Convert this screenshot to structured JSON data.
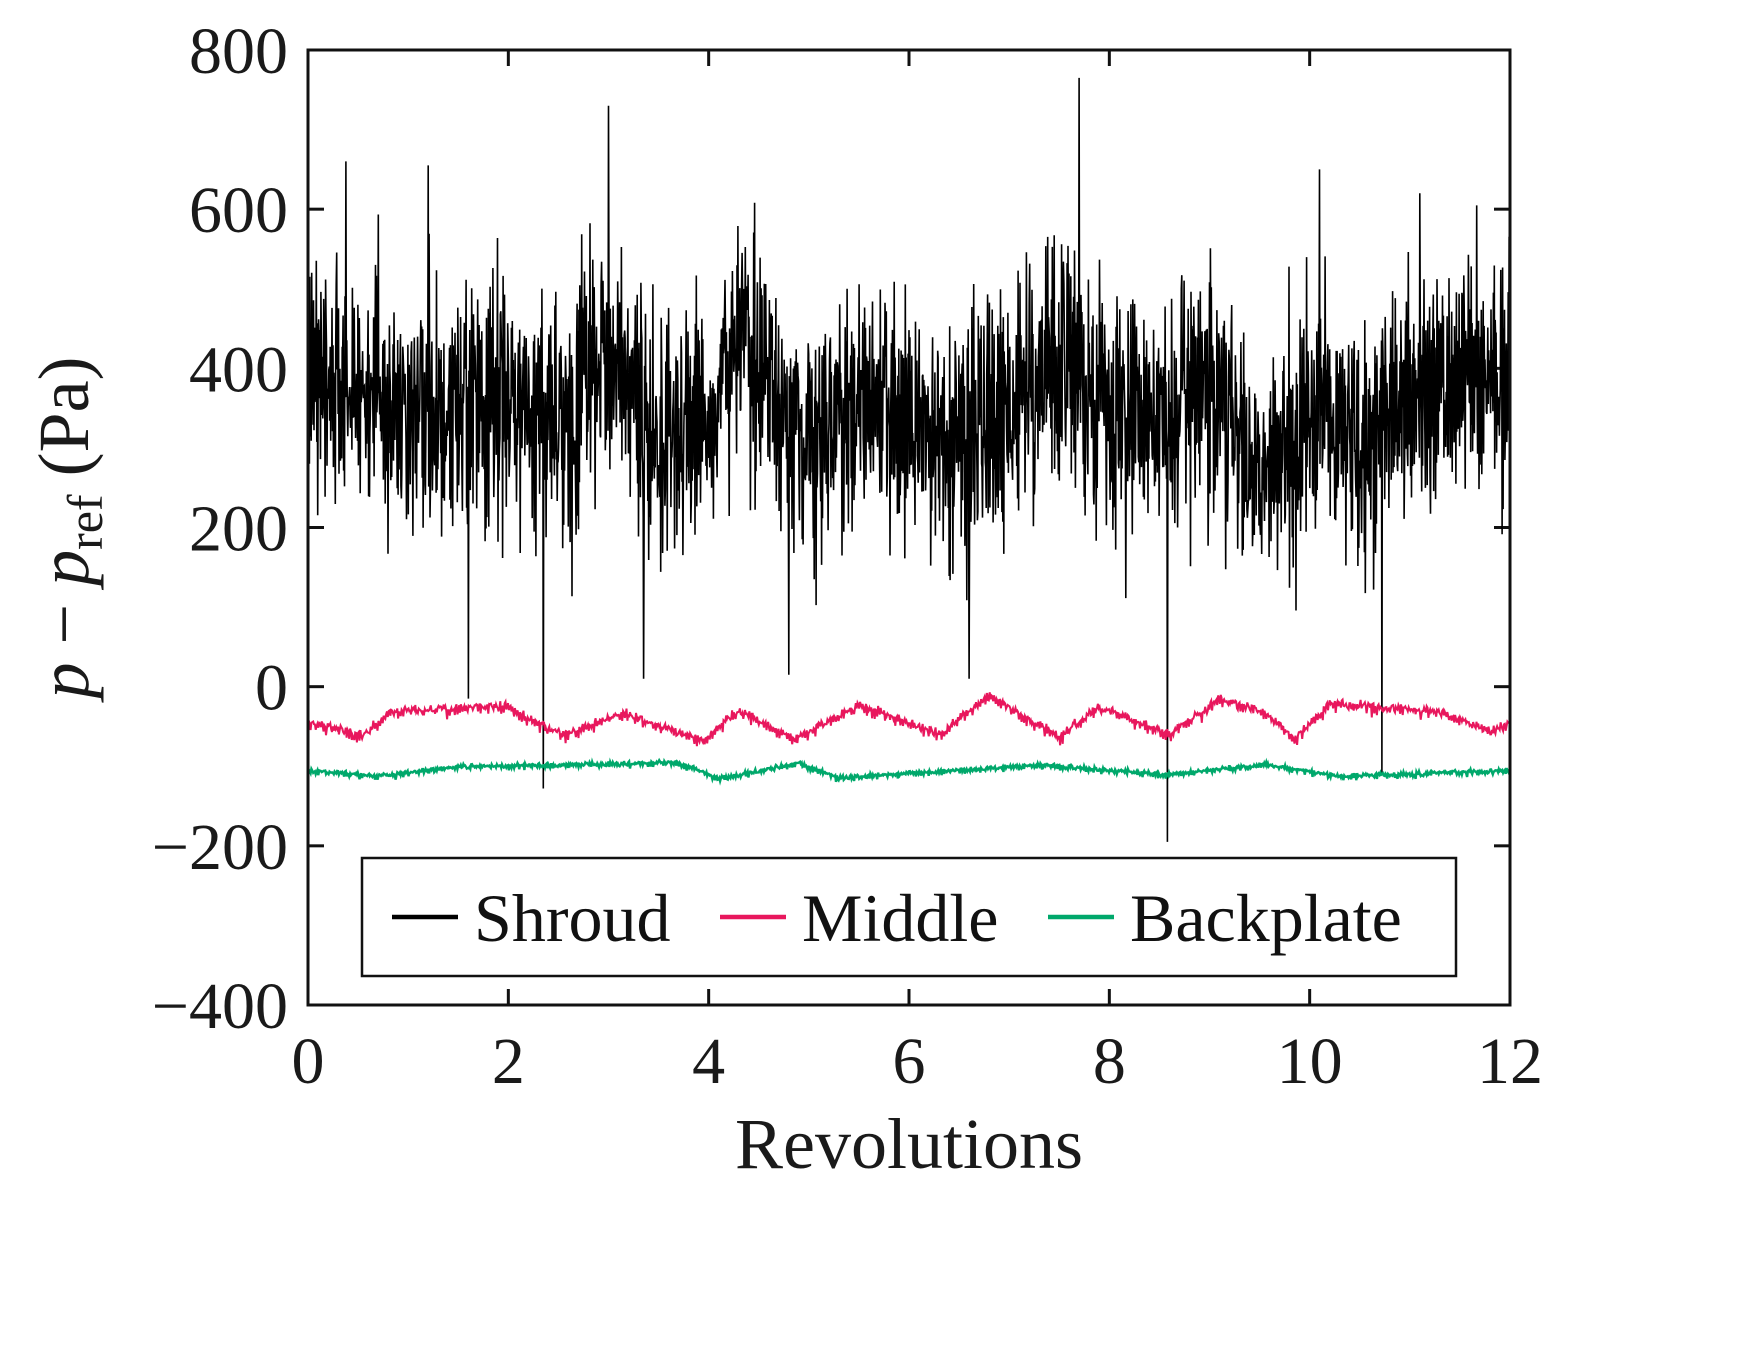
{
  "chart_data": {
    "type": "line",
    "xlabel": "Revolutions",
    "ylabel": {
      "main": "p",
      "minus": " − ",
      "ref_symbol": "p",
      "ref_subscript": "ref",
      "unit": " (Pa)"
    },
    "xlim": [
      0,
      12
    ],
    "ylim": [
      -400,
      800
    ],
    "x_ticks": [
      0,
      2,
      4,
      6,
      8,
      10,
      12
    ],
    "y_ticks": [
      -400,
      -200,
      0,
      200,
      400,
      600,
      800
    ],
    "x_tick_labels": [
      "0",
      "2",
      "4",
      "6",
      "8",
      "10",
      "12"
    ],
    "y_tick_labels": [
      "−400",
      "−200",
      "0",
      "200",
      "400",
      "600",
      "800"
    ],
    "grid": false,
    "legend_position": "lower-center",
    "series": [
      {
        "name": "Shroud",
        "color": "#000000",
        "mean": 360,
        "spread": 140,
        "trend_points": [
          [
            0,
            400
          ],
          [
            0.5,
            380
          ],
          [
            1,
            360
          ],
          [
            1.5,
            340
          ],
          [
            2,
            370
          ],
          [
            2.5,
            330
          ],
          [
            3,
            420
          ],
          [
            3.5,
            310
          ],
          [
            4,
            340
          ],
          [
            4.3,
            430
          ],
          [
            5,
            310
          ],
          [
            5.5,
            360
          ],
          [
            6,
            330
          ],
          [
            6.5,
            300
          ],
          [
            7,
            350
          ],
          [
            7.5,
            420
          ],
          [
            8,
            330
          ],
          [
            8.5,
            340
          ],
          [
            9,
            370
          ],
          [
            9.5,
            260
          ],
          [
            10,
            340
          ],
          [
            10.5,
            300
          ],
          [
            11,
            370
          ],
          [
            11.5,
            400
          ],
          [
            12,
            380
          ]
        ],
        "peaks": [
          [
            0.38,
            660
          ],
          [
            1.2,
            655
          ],
          [
            3.0,
            730
          ],
          [
            7.7,
            765
          ],
          [
            10.1,
            650
          ],
          [
            11.1,
            620
          ],
          [
            12.0,
            600
          ]
        ],
        "troughs": [
          [
            1.6,
            -15
          ],
          [
            2.35,
            -128
          ],
          [
            8.58,
            -195
          ],
          [
            10.72,
            -110
          ],
          [
            4.8,
            15
          ],
          [
            6.6,
            10
          ],
          [
            3.35,
            10
          ]
        ]
      },
      {
        "name": "Middle",
        "color": "#e8175d",
        "mean": -45,
        "humps": [
          [
            0.8,
            -32
          ],
          [
            1.95,
            -22
          ],
          [
            3.15,
            -32
          ],
          [
            4.3,
            -28
          ],
          [
            5.5,
            -22
          ],
          [
            6.8,
            -10
          ],
          [
            7.9,
            -25
          ],
          [
            9.1,
            -15
          ],
          [
            9.55,
            -30
          ],
          [
            10.2,
            -20
          ],
          [
            11.3,
            -30
          ]
        ],
        "dips": [
          [
            0.55,
            -60
          ],
          [
            2.55,
            -60
          ],
          [
            3.95,
            -68
          ],
          [
            4.85,
            -65
          ],
          [
            6.3,
            -58
          ],
          [
            7.5,
            -62
          ],
          [
            8.6,
            -60
          ],
          [
            9.85,
            -65
          ],
          [
            11.8,
            -55
          ]
        ]
      },
      {
        "name": "Backplate",
        "color": "#00a86b",
        "mean": -105,
        "humps": [
          [
            1.5,
            -100
          ],
          [
            3.7,
            -95
          ],
          [
            4.9,
            -96
          ],
          [
            7.3,
            -98
          ],
          [
            9.55,
            -97
          ]
        ],
        "dips": [
          [
            0.7,
            -112
          ],
          [
            4.1,
            -115
          ],
          [
            5.3,
            -114
          ],
          [
            8.6,
            -110
          ],
          [
            10.3,
            -112
          ]
        ]
      }
    ]
  }
}
